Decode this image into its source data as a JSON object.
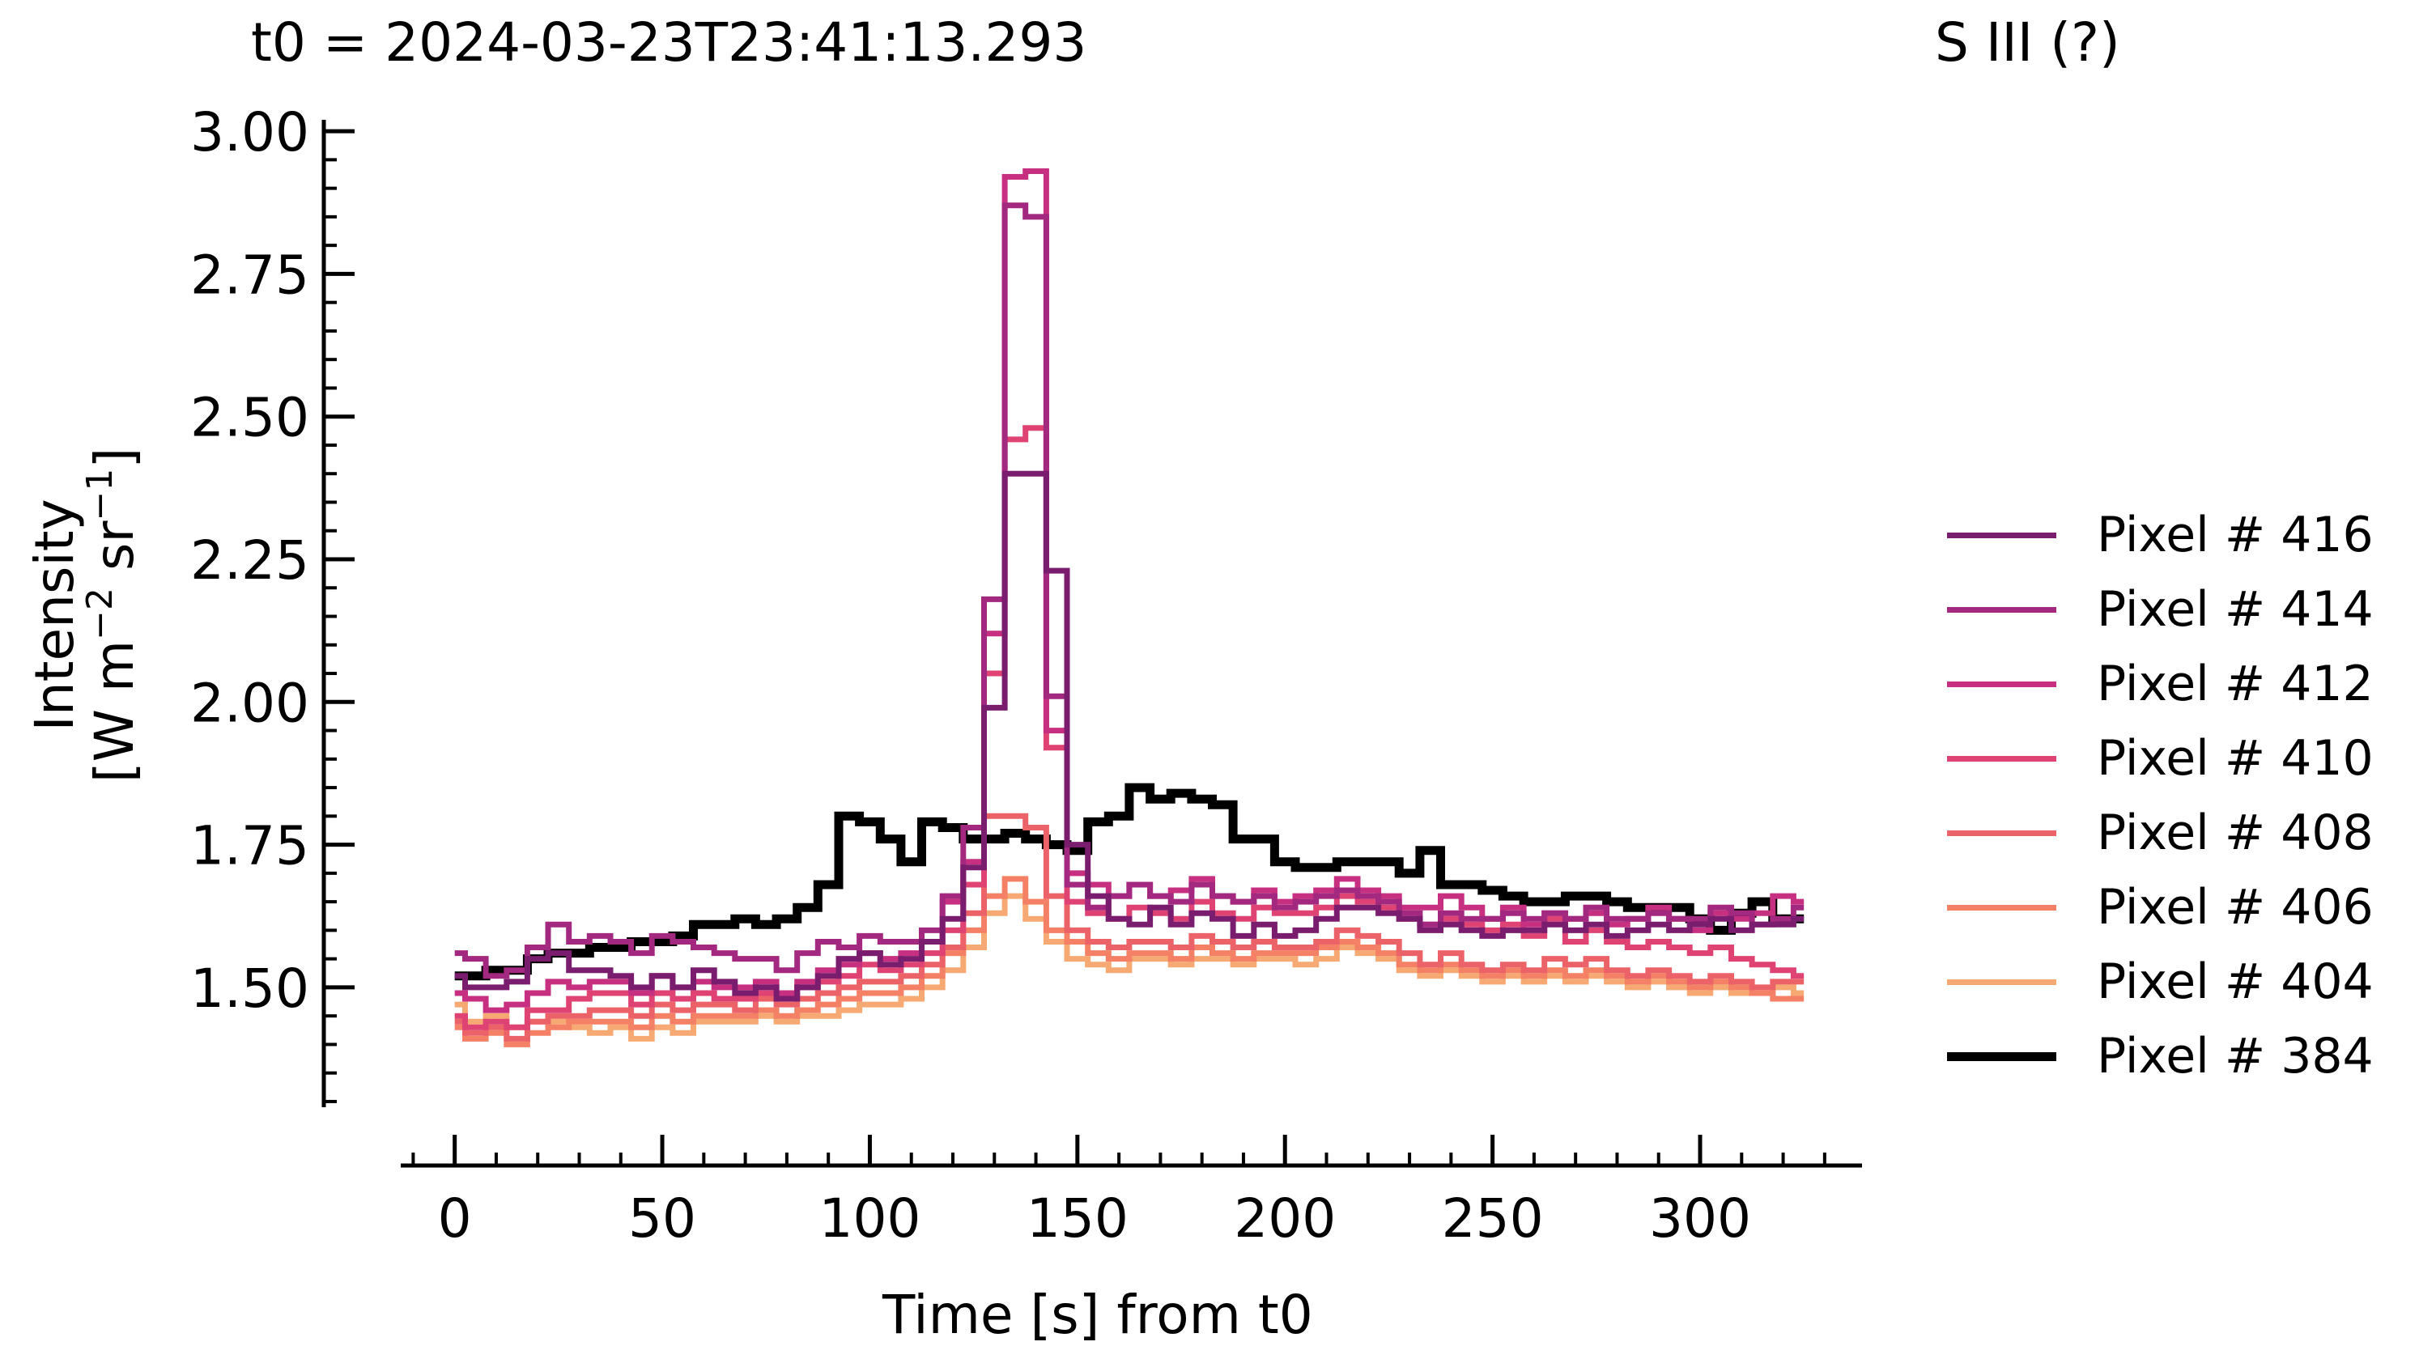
{
  "chart_data": {
    "type": "line",
    "title_left": "t0 = 2024-03-23T23:41:13.293",
    "title_right": "S III (?)",
    "xlabel": "Time [s] from t0",
    "ylabel_line1": "Intensity",
    "ylabel_line2_prefix": "[W m",
    "ylabel_exp1": "−2",
    "ylabel_mid": " sr",
    "ylabel_exp2": "−1",
    "ylabel_suffix": "]",
    "xlim": [
      -13,
      339
    ],
    "ylim": [
      1.29,
      3.02
    ],
    "xticks": [
      0,
      50,
      100,
      150,
      200,
      250,
      300
    ],
    "yticks": [
      1.5,
      1.75,
      2.0,
      2.25,
      2.5,
      2.75,
      3.0
    ],
    "ytick_labels": [
      "1.50",
      "1.75",
      "2.00",
      "2.25",
      "2.50",
      "2.75",
      "3.00"
    ],
    "step": "mid",
    "x": [
      0,
      5,
      10,
      15,
      20,
      25,
      30,
      35,
      40,
      45,
      50,
      55,
      60,
      65,
      70,
      75,
      80,
      85,
      90,
      95,
      100,
      105,
      110,
      115,
      120,
      125,
      130,
      135,
      140,
      145,
      150,
      155,
      160,
      165,
      170,
      175,
      180,
      185,
      190,
      195,
      200,
      205,
      210,
      215,
      220,
      225,
      230,
      235,
      240,
      245,
      250,
      255,
      260,
      265,
      270,
      275,
      280,
      285,
      290,
      295,
      300,
      305,
      310,
      315,
      320,
      325
    ],
    "series": [
      {
        "name": "Pixel # 416",
        "color": "#7a1d6f",
        "width": 7,
        "values": [
          1.52,
          1.5,
          1.5,
          1.51,
          1.55,
          1.56,
          1.53,
          1.53,
          1.52,
          1.5,
          1.52,
          1.5,
          1.53,
          1.51,
          1.49,
          1.5,
          1.48,
          1.5,
          1.52,
          1.55,
          1.56,
          1.54,
          1.55,
          1.58,
          1.62,
          1.71,
          1.99,
          2.4,
          2.4,
          2.23,
          1.75,
          1.66,
          1.62,
          1.61,
          1.64,
          1.61,
          1.63,
          1.62,
          1.59,
          1.61,
          1.59,
          1.6,
          1.62,
          1.64,
          1.64,
          1.63,
          1.62,
          1.6,
          1.61,
          1.6,
          1.59,
          1.6,
          1.6,
          1.61,
          1.6,
          1.61,
          1.59,
          1.6,
          1.61,
          1.6,
          1.61,
          1.62,
          1.6,
          1.61,
          1.61,
          1.62
        ]
      },
      {
        "name": "Pixel # 414",
        "color": "#a3287f",
        "width": 7,
        "values": [
          1.56,
          1.55,
          1.52,
          1.53,
          1.57,
          1.61,
          1.58,
          1.59,
          1.58,
          1.56,
          1.59,
          1.58,
          1.57,
          1.56,
          1.55,
          1.55,
          1.53,
          1.56,
          1.58,
          1.57,
          1.59,
          1.58,
          1.58,
          1.6,
          1.66,
          1.78,
          2.18,
          2.87,
          2.85,
          2.01,
          1.68,
          1.64,
          1.66,
          1.68,
          1.66,
          1.65,
          1.68,
          1.66,
          1.65,
          1.66,
          1.64,
          1.65,
          1.66,
          1.67,
          1.66,
          1.65,
          1.63,
          1.61,
          1.63,
          1.62,
          1.62,
          1.63,
          1.62,
          1.63,
          1.62,
          1.64,
          1.62,
          1.62,
          1.63,
          1.62,
          1.62,
          1.64,
          1.63,
          1.61,
          1.62,
          1.64
        ]
      },
      {
        "name": "Pixel # 412",
        "color": "#c73080",
        "width": 7,
        "values": [
          1.49,
          1.48,
          1.46,
          1.47,
          1.49,
          1.51,
          1.5,
          1.51,
          1.51,
          1.49,
          1.52,
          1.5,
          1.51,
          1.5,
          1.5,
          1.51,
          1.49,
          1.51,
          1.53,
          1.54,
          1.56,
          1.55,
          1.56,
          1.58,
          1.65,
          1.72,
          2.12,
          2.92,
          2.93,
          1.95,
          1.7,
          1.68,
          1.66,
          1.68,
          1.66,
          1.67,
          1.69,
          1.66,
          1.65,
          1.67,
          1.65,
          1.66,
          1.67,
          1.69,
          1.67,
          1.66,
          1.64,
          1.64,
          1.66,
          1.64,
          1.62,
          1.64,
          1.61,
          1.63,
          1.62,
          1.63,
          1.61,
          1.62,
          1.64,
          1.62,
          1.6,
          1.63,
          1.62,
          1.63,
          1.66,
          1.65
        ]
      },
      {
        "name": "Pixel # 410",
        "color": "#df4374",
        "width": 7,
        "values": [
          1.45,
          1.43,
          1.44,
          1.43,
          1.46,
          1.46,
          1.48,
          1.49,
          1.49,
          1.47,
          1.49,
          1.48,
          1.49,
          1.48,
          1.48,
          1.49,
          1.48,
          1.5,
          1.51,
          1.52,
          1.54,
          1.53,
          1.54,
          1.56,
          1.6,
          1.68,
          2.05,
          2.46,
          2.48,
          1.92,
          1.65,
          1.63,
          1.62,
          1.64,
          1.63,
          1.62,
          1.65,
          1.63,
          1.62,
          1.64,
          1.63,
          1.63,
          1.64,
          1.66,
          1.65,
          1.64,
          1.62,
          1.61,
          1.62,
          1.61,
          1.6,
          1.61,
          1.59,
          1.62,
          1.58,
          1.6,
          1.58,
          1.57,
          1.58,
          1.57,
          1.56,
          1.57,
          1.55,
          1.54,
          1.53,
          1.52
        ]
      },
      {
        "name": "Pixel # 408",
        "color": "#ec6269",
        "width": 7,
        "values": [
          1.44,
          1.42,
          1.43,
          1.41,
          1.44,
          1.45,
          1.45,
          1.46,
          1.46,
          1.45,
          1.47,
          1.46,
          1.47,
          1.47,
          1.46,
          1.48,
          1.47,
          1.48,
          1.49,
          1.5,
          1.51,
          1.51,
          1.52,
          1.54,
          1.57,
          1.63,
          1.8,
          1.8,
          1.78,
          1.66,
          1.6,
          1.58,
          1.57,
          1.58,
          1.58,
          1.57,
          1.59,
          1.58,
          1.57,
          1.58,
          1.57,
          1.57,
          1.58,
          1.6,
          1.59,
          1.58,
          1.56,
          1.54,
          1.56,
          1.54,
          1.53,
          1.54,
          1.53,
          1.55,
          1.54,
          1.55,
          1.53,
          1.52,
          1.53,
          1.52,
          1.51,
          1.52,
          1.51,
          1.5,
          1.51,
          1.51
        ]
      },
      {
        "name": "Pixel # 406",
        "color": "#f48066",
        "width": 7,
        "values": [
          1.43,
          1.41,
          1.42,
          1.4,
          1.42,
          1.43,
          1.44,
          1.44,
          1.44,
          1.43,
          1.45,
          1.44,
          1.45,
          1.45,
          1.45,
          1.46,
          1.45,
          1.46,
          1.47,
          1.48,
          1.49,
          1.49,
          1.5,
          1.52,
          1.56,
          1.6,
          1.66,
          1.69,
          1.65,
          1.6,
          1.58,
          1.56,
          1.55,
          1.56,
          1.56,
          1.55,
          1.57,
          1.56,
          1.55,
          1.56,
          1.56,
          1.56,
          1.57,
          1.58,
          1.57,
          1.56,
          1.54,
          1.53,
          1.54,
          1.53,
          1.52,
          1.53,
          1.52,
          1.53,
          1.52,
          1.53,
          1.52,
          1.51,
          1.52,
          1.51,
          1.5,
          1.51,
          1.5,
          1.49,
          1.48,
          1.48
        ]
      },
      {
        "name": "Pixel # 404",
        "color": "#f6a973",
        "width": 7,
        "values": [
          1.47,
          1.44,
          1.45,
          1.43,
          1.44,
          1.44,
          1.43,
          1.42,
          1.43,
          1.41,
          1.43,
          1.42,
          1.44,
          1.44,
          1.44,
          1.45,
          1.44,
          1.45,
          1.45,
          1.46,
          1.47,
          1.47,
          1.48,
          1.5,
          1.53,
          1.57,
          1.63,
          1.66,
          1.62,
          1.58,
          1.55,
          1.54,
          1.53,
          1.55,
          1.55,
          1.54,
          1.55,
          1.55,
          1.54,
          1.55,
          1.55,
          1.54,
          1.55,
          1.57,
          1.56,
          1.55,
          1.53,
          1.52,
          1.53,
          1.52,
          1.51,
          1.52,
          1.51,
          1.52,
          1.51,
          1.52,
          1.51,
          1.5,
          1.51,
          1.5,
          1.49,
          1.5,
          1.49,
          1.49,
          1.5,
          1.49
        ]
      },
      {
        "name": "Pixel # 384",
        "color": "#000000",
        "width": 11,
        "values": [
          1.52,
          1.52,
          1.53,
          1.53,
          1.55,
          1.56,
          1.56,
          1.57,
          1.57,
          1.58,
          1.58,
          1.59,
          1.61,
          1.61,
          1.62,
          1.61,
          1.62,
          1.64,
          1.68,
          1.8,
          1.79,
          1.76,
          1.72,
          1.79,
          1.78,
          1.76,
          1.76,
          1.77,
          1.76,
          1.75,
          1.74,
          1.79,
          1.8,
          1.85,
          1.83,
          1.84,
          1.83,
          1.82,
          1.76,
          1.76,
          1.72,
          1.71,
          1.71,
          1.72,
          1.72,
          1.72,
          1.7,
          1.74,
          1.68,
          1.68,
          1.67,
          1.66,
          1.65,
          1.65,
          1.66,
          1.66,
          1.65,
          1.64,
          1.64,
          1.64,
          1.62,
          1.6,
          1.63,
          1.65,
          1.62,
          1.62
        ]
      }
    ]
  }
}
